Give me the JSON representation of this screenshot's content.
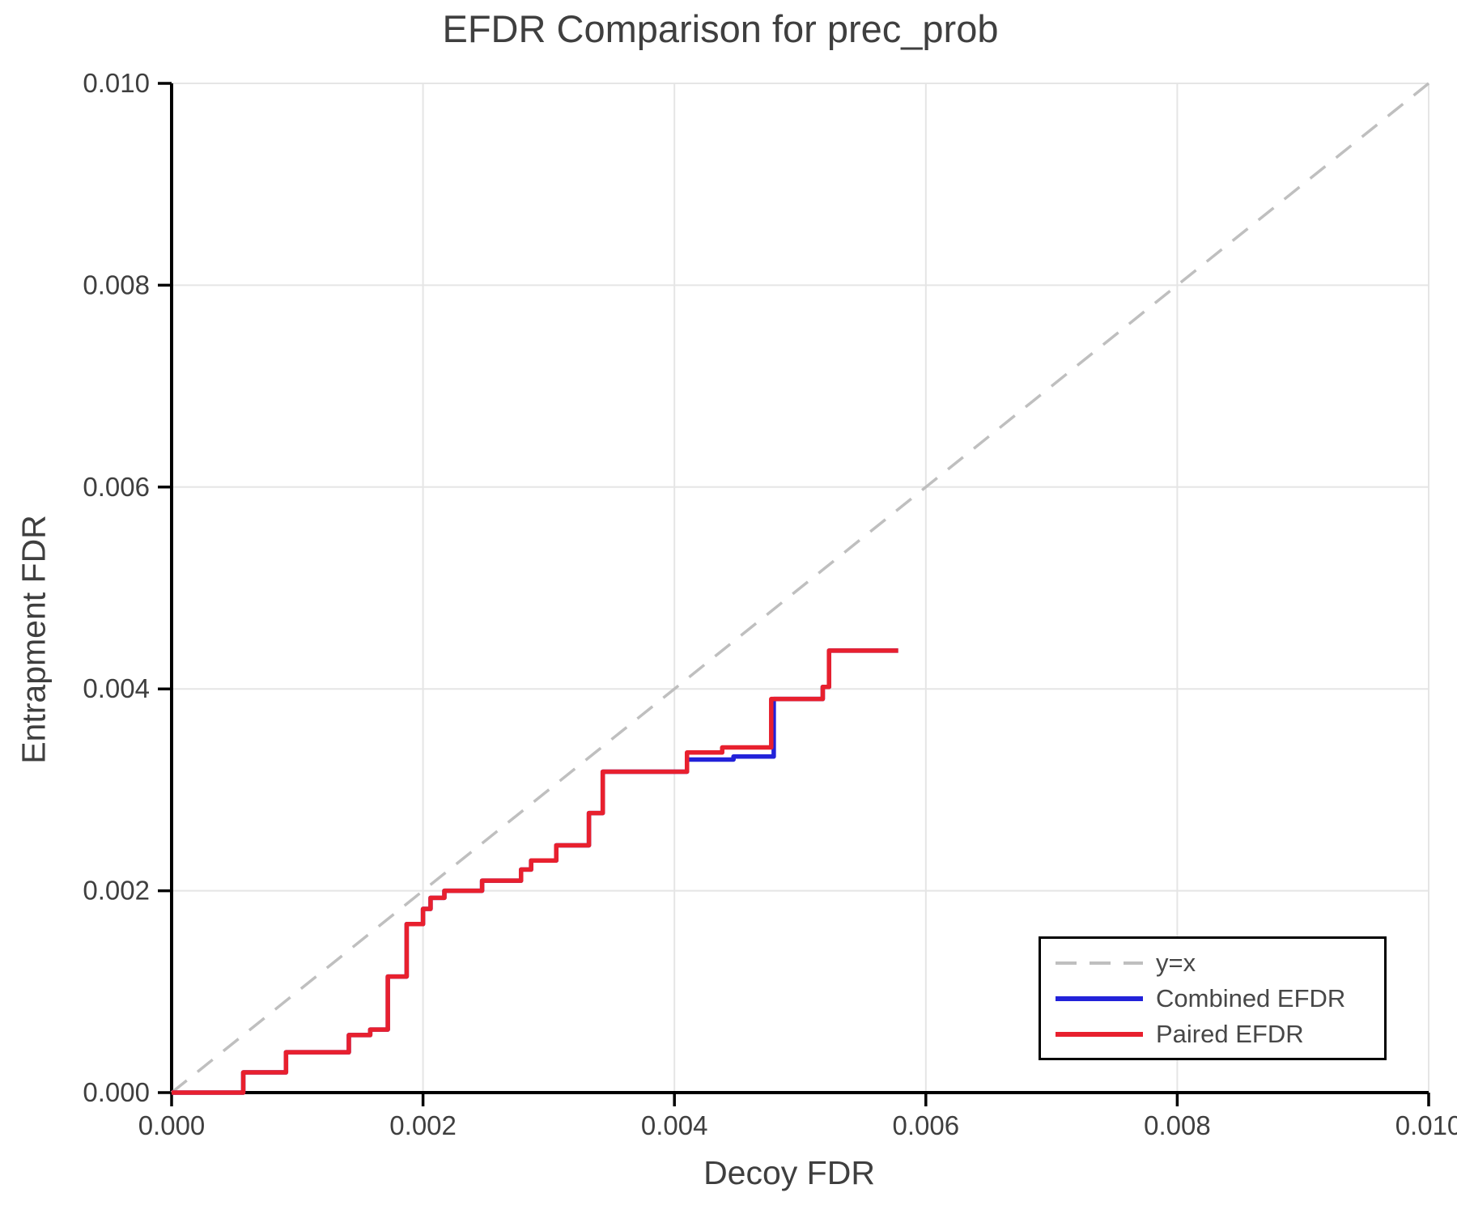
{
  "chart_data": {
    "type": "line",
    "title": "EFDR Comparison for prec_prob",
    "xlabel": "Decoy FDR",
    "ylabel": "Entrapment FDR",
    "xlim": [
      0.0,
      0.01
    ],
    "ylim": [
      0.0,
      0.01
    ],
    "grid": true,
    "background_color": "#ffffff",
    "axis_color": "#000000",
    "grid_color": "#e5e5e5",
    "text_color": "#3f3f3f",
    "legend_position": "lower right",
    "xticks": {
      "values": [
        0.0,
        0.002,
        0.004,
        0.006,
        0.008,
        0.01
      ],
      "labels": [
        "0.000",
        "0.002",
        "0.004",
        "0.006",
        "0.008",
        "0.010"
      ]
    },
    "yticks": {
      "values": [
        0.0,
        0.002,
        0.004,
        0.006,
        0.008,
        0.01
      ],
      "labels": [
        "0.000",
        "0.002",
        "0.004",
        "0.006",
        "0.008",
        "0.010"
      ]
    },
    "series": [
      {
        "name": "y=x",
        "color": "#bfbfbf",
        "style": "dashed",
        "width": 3.5,
        "step": false,
        "points": [
          [
            0.0,
            0.0
          ],
          [
            0.01,
            0.01
          ]
        ]
      },
      {
        "name": "Combined EFDR",
        "color": "#2222d9",
        "style": "solid",
        "width": 5.5,
        "step": true,
        "points": [
          [
            0.0,
            0.0
          ],
          [
            0.00057,
            0.0002
          ],
          [
            0.00091,
            0.0004
          ],
          [
            0.00141,
            0.00057
          ],
          [
            0.00158,
            0.000625
          ],
          [
            0.00172,
            0.00115
          ],
          [
            0.00187,
            0.00167
          ],
          [
            0.002,
            0.00182
          ],
          [
            0.00206,
            0.00193
          ],
          [
            0.00217,
            0.002
          ],
          [
            0.00247,
            0.0021
          ],
          [
            0.00278,
            0.00221
          ],
          [
            0.00286,
            0.0023
          ],
          [
            0.00306,
            0.00245
          ],
          [
            0.00332,
            0.00277
          ],
          [
            0.00343,
            0.00318
          ],
          [
            0.0041,
            0.0033
          ],
          [
            0.00447,
            0.00333
          ],
          [
            0.00479,
            0.0039
          ],
          [
            0.00518,
            0.00402
          ],
          [
            0.00523,
            0.00438
          ],
          [
            0.00578,
            0.00438
          ]
        ]
      },
      {
        "name": "Paired EFDR",
        "color": "#e8202e",
        "style": "solid",
        "width": 5.5,
        "step": true,
        "points": [
          [
            0.0,
            0.0
          ],
          [
            0.00057,
            0.0002
          ],
          [
            0.00091,
            0.0004
          ],
          [
            0.00141,
            0.00057
          ],
          [
            0.00158,
            0.000625
          ],
          [
            0.00172,
            0.00115
          ],
          [
            0.00187,
            0.00167
          ],
          [
            0.002,
            0.00182
          ],
          [
            0.00206,
            0.00193
          ],
          [
            0.00217,
            0.002
          ],
          [
            0.00247,
            0.0021
          ],
          [
            0.00278,
            0.00221
          ],
          [
            0.00286,
            0.0023
          ],
          [
            0.00306,
            0.00245
          ],
          [
            0.00332,
            0.00277
          ],
          [
            0.00343,
            0.00318
          ],
          [
            0.0041,
            0.00337
          ],
          [
            0.00438,
            0.00342
          ],
          [
            0.00477,
            0.0039
          ],
          [
            0.00518,
            0.00402
          ],
          [
            0.00523,
            0.00438
          ],
          [
            0.00578,
            0.00438
          ]
        ]
      }
    ]
  }
}
